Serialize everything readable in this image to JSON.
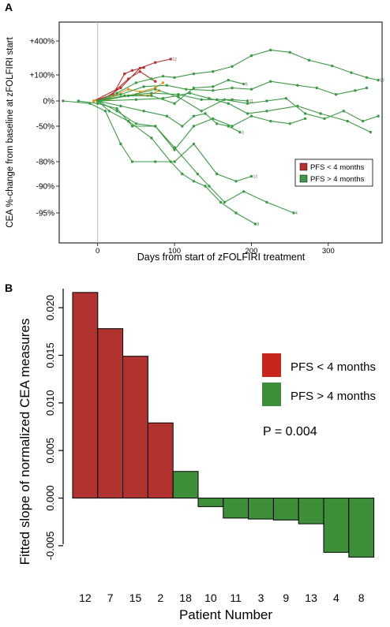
{
  "chart_data": [
    {
      "panel": "A",
      "type": "line",
      "xlabel": "Days from start of zFOLFIRI treatment",
      "ylabel": "CEA %-change from baseline at zFOLFIRI start",
      "xlim": [
        -50,
        370
      ],
      "x_ticks": [
        0,
        100,
        200,
        300
      ],
      "y_tick_labels": [
        "+400%",
        "+100%",
        "0%",
        "-50%",
        "-80%",
        "-90%",
        "-95%"
      ],
      "grid": false,
      "reference_line_x": 0,
      "legend": {
        "placement": "bottom-right",
        "entries": [
          {
            "label": "PFS < 4 months",
            "color": "#b5322f"
          },
          {
            "label": "PFS > 4 months",
            "color": "#3d9a45"
          }
        ]
      },
      "series": [
        {
          "group": "PFS < 4 months",
          "color": "#b5322f",
          "end_label": "12",
          "points": [
            [
              -5,
              0
            ],
            [
              10,
              12
            ],
            [
              30,
              50
            ],
            [
              55,
              160
            ],
            [
              75,
              210
            ],
            [
              95,
              240
            ]
          ]
        },
        {
          "group": "PFS < 4 months",
          "color": "#b5322f",
          "points": [
            [
              -5,
              0
            ],
            [
              20,
              25
            ],
            [
              35,
              110
            ],
            [
              45,
              140
            ],
            [
              60,
              165
            ]
          ]
        },
        {
          "group": "PFS < 4 months",
          "color": "#b5322f",
          "points": [
            [
              -5,
              0
            ],
            [
              25,
              45
            ],
            [
              40,
              85
            ],
            [
              55,
              130
            ],
            [
              75,
              75
            ]
          ]
        },
        {
          "group": "PFS < 4 months",
          "color": "#e89420",
          "points": [
            [
              -5,
              0
            ],
            [
              10,
              8
            ],
            [
              25,
              25
            ],
            [
              40,
              45
            ],
            [
              55,
              35
            ],
            [
              75,
              50
            ],
            [
              85,
              70
            ]
          ]
        },
        {
          "group": "PFS < 4 months",
          "color": "#e89420",
          "points": [
            [
              -5,
              0
            ],
            [
              15,
              5
            ],
            [
              35,
              20
            ],
            [
              50,
              25
            ],
            [
              65,
              20
            ],
            [
              80,
              40
            ]
          ]
        },
        {
          "group": "PFS > 4 months",
          "color": "#3d9a45",
          "end_label": "18",
          "points": [
            [
              0,
              0
            ],
            [
              25,
              30
            ],
            [
              50,
              70
            ],
            [
              70,
              85
            ],
            [
              85,
              95
            ],
            [
              100,
              90
            ],
            [
              125,
              110
            ],
            [
              150,
              130
            ],
            [
              175,
              175
            ],
            [
              200,
              270
            ],
            [
              225,
              320
            ],
            [
              250,
              300
            ],
            [
              275,
              230
            ],
            [
              305,
              180
            ],
            [
              330,
              120
            ],
            [
              350,
              90
            ],
            [
              365,
              80
            ]
          ]
        },
        {
          "group": "PFS > 4 months",
          "color": "#3d9a45",
          "points": [
            [
              0,
              0
            ],
            [
              30,
              25
            ],
            [
              60,
              55
            ],
            [
              90,
              60
            ],
            [
              115,
              45
            ],
            [
              150,
              40
            ],
            [
              175,
              50
            ],
            [
              200,
              45
            ],
            [
              225,
              75
            ],
            [
              260,
              60
            ],
            [
              285,
              50
            ],
            [
              310,
              25
            ],
            [
              335,
              40
            ],
            [
              350,
              50
            ]
          ]
        },
        {
          "group": "PFS > 4 months",
          "color": "#3d9a45",
          "points": [
            [
              0,
              0
            ],
            [
              40,
              20
            ],
            [
              75,
              45
            ],
            [
              105,
              15
            ],
            [
              135,
              -20
            ],
            [
              165,
              5
            ],
            [
              195,
              -5
            ],
            [
              220,
              0
            ],
            [
              245,
              10
            ],
            [
              270,
              -25
            ],
            [
              295,
              -35
            ],
            [
              320,
              -20
            ],
            [
              345,
              -40
            ],
            [
              365,
              -30
            ]
          ]
        },
        {
          "group": "PFS > 4 months",
          "color": "#3d9a45",
          "end_label": "11",
          "points": [
            [
              0,
              0
            ],
            [
              35,
              20
            ],
            [
              70,
              30
            ],
            [
              105,
              25
            ],
            [
              135,
              5
            ],
            [
              155,
              5
            ],
            [
              175,
              5
            ],
            [
              195,
              0
            ]
          ]
        },
        {
          "group": "PFS > 4 months",
          "color": "#3d9a45",
          "points": [
            [
              0,
              0
            ],
            [
              50,
              5
            ],
            [
              85,
              10
            ],
            [
              120,
              30
            ],
            [
              145,
              10
            ],
            [
              170,
              -5
            ],
            [
              195,
              -25
            ],
            [
              220,
              -20
            ],
            [
              260,
              -10
            ],
            [
              290,
              -25
            ],
            [
              325,
              -40
            ],
            [
              355,
              -55
            ]
          ]
        },
        {
          "group": "PFS > 4 months",
          "color": "#3d9a45",
          "end_label": "9",
          "points": [
            [
              0,
              0
            ],
            [
              40,
              20
            ],
            [
              70,
              20
            ],
            [
              100,
              -5
            ],
            [
              125,
              50
            ],
            [
              150,
              55
            ],
            [
              170,
              80
            ],
            [
              190,
              65
            ]
          ]
        },
        {
          "group": "PFS > 4 months",
          "color": "#3d9a45",
          "end_label": "3",
          "points": [
            [
              0,
              0
            ],
            [
              30,
              -10
            ],
            [
              60,
              -20
            ],
            [
              90,
              -30
            ],
            [
              110,
              -50
            ],
            [
              125,
              -30
            ],
            [
              140,
              -25
            ],
            [
              155,
              -45
            ],
            [
              170,
              -50
            ],
            [
              185,
              -55
            ]
          ]
        },
        {
          "group": "PFS > 4 months",
          "color": "#3d9a45",
          "points": [
            [
              0,
              0
            ],
            [
              25,
              -20
            ],
            [
              50,
              -45
            ],
            [
              75,
              -50
            ],
            [
              100,
              -70
            ],
            [
              125,
              -50
            ],
            [
              150,
              -35
            ],
            [
              175,
              -50
            ],
            [
              200,
              -30
            ],
            [
              225,
              -40
            ],
            [
              250,
              -45
            ],
            [
              270,
              -35
            ]
          ]
        },
        {
          "group": "PFS > 4 months",
          "color": "#3d9a45",
          "end_label": "13",
          "points": [
            [
              -45,
              0
            ],
            [
              -10,
              -5
            ],
            [
              10,
              -20
            ],
            [
              30,
              -65
            ],
            [
              45,
              -80
            ],
            [
              75,
              -80
            ],
            [
              100,
              -80
            ],
            [
              125,
              -65
            ],
            [
              155,
              -85
            ],
            [
              180,
              -88
            ],
            [
              200,
              -86
            ]
          ]
        },
        {
          "group": "PFS > 4 months",
          "color": "#3d9a45",
          "end_label": "4",
          "points": [
            [
              -25,
              0
            ],
            [
              0,
              -5
            ],
            [
              25,
              -15
            ],
            [
              45,
              -50
            ],
            [
              75,
              -50
            ],
            [
              100,
              -68
            ],
            [
              130,
              -85
            ],
            [
              145,
              -90
            ],
            [
              165,
              -93
            ],
            [
              190,
              -91
            ],
            [
              220,
              -93
            ],
            [
              255,
              -95
            ]
          ]
        },
        {
          "group": "PFS > 4 months",
          "color": "#3d9a45",
          "end_label": "8",
          "points": [
            [
              0,
              0
            ],
            [
              15,
              -20
            ],
            [
              40,
              -40
            ],
            [
              70,
              -60
            ],
            [
              95,
              -80
            ],
            [
              110,
              -85
            ],
            [
              125,
              -88
            ],
            [
              140,
              -90
            ],
            [
              160,
              -93
            ],
            [
              180,
              -95
            ],
            [
              205,
              -96
            ]
          ]
        }
      ]
    },
    {
      "panel": "B",
      "type": "bar",
      "xlabel": "Patient Number",
      "ylabel": "Fitted slope of normalized CEA measures",
      "ylim": [
        -0.0065,
        0.022
      ],
      "y_ticks": [
        -0.005,
        0.0,
        0.005,
        0.01,
        0.015,
        0.02
      ],
      "y_tick_labels": [
        "-0.005",
        "0.000",
        "0.005",
        "0.010",
        "0.015",
        "0.020"
      ],
      "categories": [
        "12",
        "7",
        "15",
        "2",
        "18",
        "10",
        "11",
        "3",
        "9",
        "13",
        "4",
        "8"
      ],
      "values": [
        0.0216,
        0.0178,
        0.0149,
        0.0079,
        0.0028,
        -0.0009,
        -0.0021,
        -0.0022,
        -0.0023,
        -0.0027,
        -0.0057,
        -0.0062
      ],
      "groups": [
        "PFS < 4 months",
        "PFS < 4 months",
        "PFS < 4 months",
        "PFS < 4 months",
        "PFS > 4 months",
        "PFS > 4 months",
        "PFS > 4 months",
        "PFS > 4 months",
        "PFS > 4 months",
        "PFS > 4 months",
        "PFS > 4 months",
        "PFS > 4 months"
      ],
      "group_colors": {
        "PFS < 4 months": "#b03330",
        "PFS > 4 months": "#3e8e3a"
      },
      "legend": {
        "placement": "top-right",
        "entries": [
          {
            "label": "PFS < 4 months",
            "color": "#c7261f"
          },
          {
            "label": "PFS > 4 months",
            "color": "#3e8e3a"
          }
        ]
      },
      "annotation": "P = 0.004",
      "grid": false
    }
  ],
  "panel_labels": {
    "a": "A",
    "b": "B"
  }
}
